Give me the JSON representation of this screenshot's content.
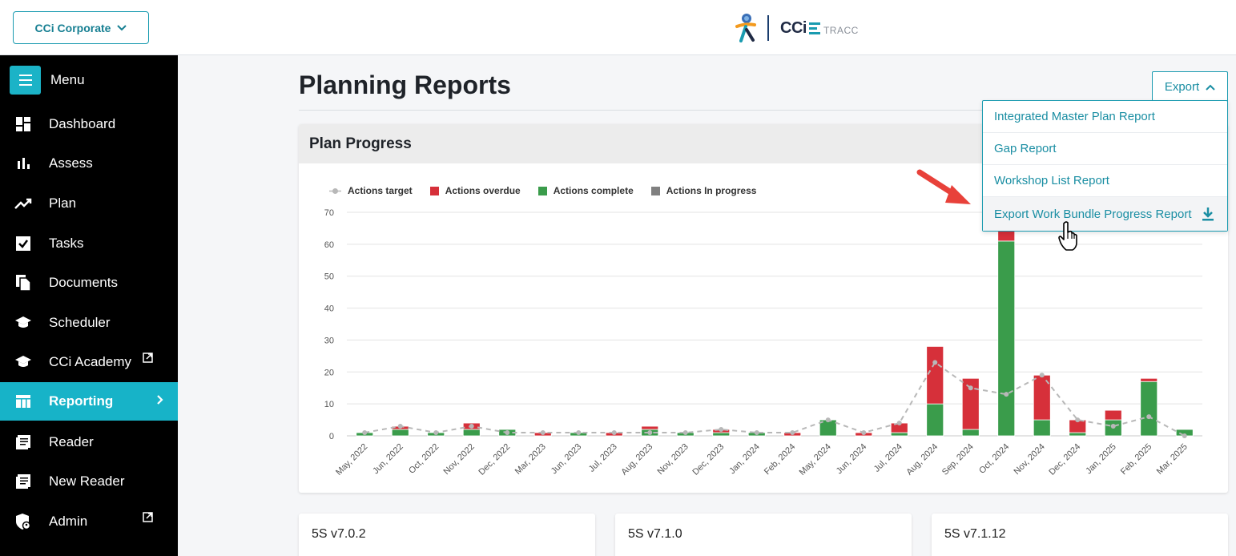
{
  "org_selector": {
    "label": "CCi Corporate",
    "icon": "chevron-down-icon"
  },
  "brand": {
    "name": "CCi",
    "product": "TRACC"
  },
  "sidebar": {
    "menu_label": "Menu",
    "items": [
      {
        "label": "Dashboard",
        "icon": "dashboard-icon"
      },
      {
        "label": "Assess",
        "icon": "bar-chart-icon"
      },
      {
        "label": "Plan",
        "icon": "trending-up-icon"
      },
      {
        "label": "Tasks",
        "icon": "checkbox-icon"
      },
      {
        "label": "Documents",
        "icon": "documents-icon"
      },
      {
        "label": "Scheduler",
        "icon": "graduation-cap-icon"
      },
      {
        "label": "CCi Academy",
        "icon": "graduation-cap-icon",
        "external": true
      },
      {
        "label": "Reporting",
        "icon": "table-icon",
        "active": true
      },
      {
        "label": "Reader",
        "icon": "reader-icon"
      },
      {
        "label": "New Reader",
        "icon": "reader-icon"
      },
      {
        "label": "Admin",
        "icon": "shield-user-icon",
        "external": true
      }
    ]
  },
  "page": {
    "title": "Planning Reports"
  },
  "export": {
    "label": "Export",
    "items": [
      "Integrated Master Plan Report",
      "Gap Report",
      "Workshop List Report",
      "Export Work Bundle Progress Report"
    ]
  },
  "card": {
    "title": "Plan Progress"
  },
  "colors": {
    "accent": "#17b3c8",
    "overdue": "#d6303a",
    "complete": "#3a9c4b",
    "in_progress": "#808080",
    "target": "#b8b8b8"
  },
  "chart_data": {
    "type": "bar",
    "stacked": true,
    "categories": [
      "May, 2022",
      "Jun, 2022",
      "Oct, 2022",
      "Nov, 2022",
      "Dec, 2022",
      "Mar, 2023",
      "Jun, 2023",
      "Jul, 2023",
      "Aug, 2023",
      "Nov, 2023",
      "Dec, 2023",
      "Jan, 2024",
      "Feb, 2024",
      "May, 2024",
      "Jun, 2024",
      "Jul, 2024",
      "Aug, 2024",
      "Sep, 2024",
      "Oct, 2024",
      "Nov, 2024",
      "Dec, 2024",
      "Jan, 2025",
      "Feb, 2025",
      "Mar, 2025"
    ],
    "series": [
      {
        "name": "Actions target",
        "type": "line",
        "values": [
          1,
          3,
          1,
          3,
          1,
          1,
          1,
          1,
          1,
          1,
          2,
          1,
          1,
          5,
          1,
          4,
          23,
          15,
          13,
          19,
          5,
          3,
          6,
          0
        ]
      },
      {
        "name": "Actions overdue",
        "values": [
          0,
          1,
          0,
          2,
          0,
          1,
          0,
          1,
          1,
          0,
          1,
          0,
          1,
          0,
          1,
          3,
          18,
          16,
          4,
          14,
          4,
          3,
          1,
          0
        ]
      },
      {
        "name": "Actions complete",
        "values": [
          1,
          2,
          1,
          2,
          2,
          0,
          1,
          0,
          2,
          1,
          1,
          1,
          0,
          5,
          0,
          1,
          10,
          2,
          61,
          5,
          1,
          5,
          17,
          2
        ]
      },
      {
        "name": "Actions In progress",
        "values": [
          0,
          0,
          0,
          0,
          0,
          0,
          0,
          0,
          0,
          0,
          0,
          0,
          0,
          0,
          0,
          0,
          0,
          0,
          0,
          0,
          0,
          0,
          0,
          0
        ]
      }
    ],
    "ylim": [
      0,
      70
    ],
    "yticks": [
      0,
      10,
      20,
      30,
      40,
      50,
      60,
      70
    ],
    "grid": true,
    "legend_position": "top-left"
  },
  "bottom_cards": [
    "5S v7.0.2",
    "5S v7.1.0",
    "5S v7.1.12"
  ]
}
